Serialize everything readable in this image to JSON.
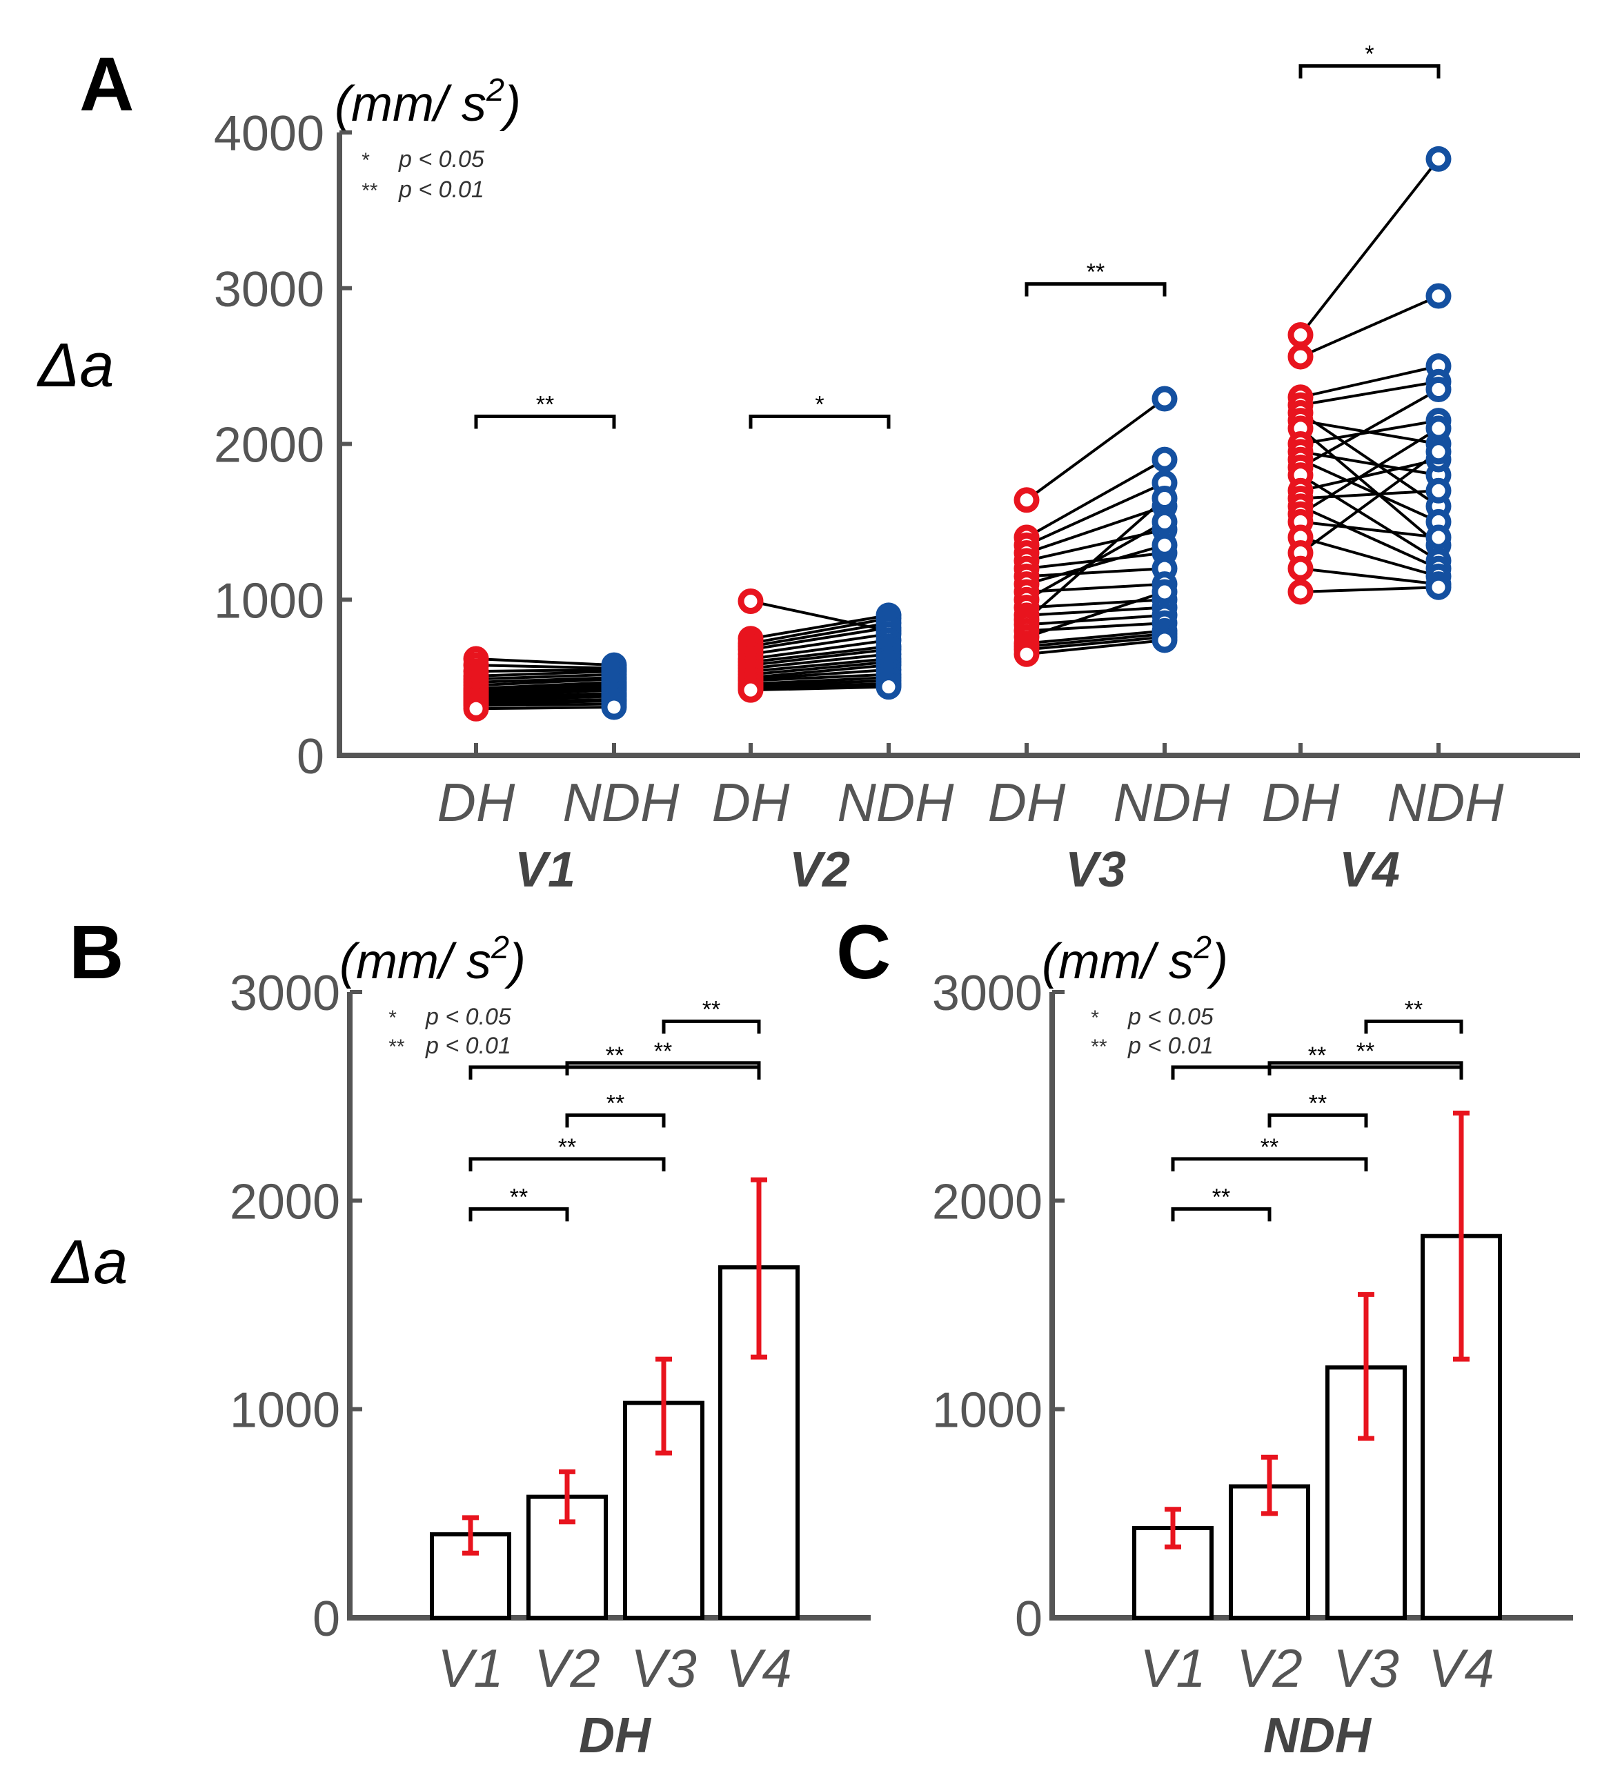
{
  "colors": {
    "dh": "#e8141e",
    "ndh": "#1450a0",
    "axis": "#555555",
    "error": "#e8141e"
  },
  "chart_data": [
    {
      "panel": "A",
      "type": "scatter",
      "unit_label": "(mm/ s2)",
      "ylabel": "Δa",
      "ylim": [
        0,
        4000
      ],
      "yticks": [
        "0",
        "1000",
        "2000",
        "3000",
        "4000"
      ],
      "categories": [
        "DH",
        "NDH",
        "DH",
        "NDH",
        "DH",
        "NDH",
        "DH",
        "NDH"
      ],
      "groups": [
        "V1",
        "V2",
        "V3",
        "V4"
      ],
      "legend": [
        {
          "sym": "*",
          "text": "p < 0.05"
        },
        {
          "sym": "**",
          "text": "p < 0.01"
        }
      ],
      "paired": [
        {
          "group": "V1",
          "sig": "**",
          "bracket_y": 2000,
          "DH": [
            620,
            580,
            540,
            510,
            490,
            470,
            450,
            430,
            420,
            410,
            400,
            390,
            380,
            370,
            360,
            350,
            340,
            330,
            320,
            300
          ],
          "NDH": [
            580,
            560,
            550,
            540,
            520,
            500,
            490,
            470,
            460,
            450,
            440,
            430,
            420,
            400,
            390,
            380,
            360,
            350,
            330,
            310
          ]
        },
        {
          "group": "V2",
          "sig": "*",
          "bracket_y": 2000,
          "DH": [
            990,
            750,
            720,
            700,
            680,
            650,
            620,
            600,
            580,
            560,
            540,
            520,
            500,
            490,
            480,
            460,
            450,
            440,
            430,
            420
          ],
          "NDH": [
            800,
            900,
            880,
            850,
            820,
            780,
            740,
            700,
            680,
            650,
            620,
            600,
            580,
            550,
            520,
            500,
            480,
            460,
            450,
            440
          ]
        },
        {
          "group": "V3",
          "sig": "**",
          "bracket_y": 2850,
          "DH": [
            1640,
            1400,
            1350,
            1300,
            1250,
            1200,
            1150,
            1100,
            1050,
            1000,
            950,
            900,
            870,
            840,
            800,
            760,
            720,
            700,
            680,
            650
          ],
          "NDH": [
            2290,
            1900,
            1750,
            1600,
            1450,
            1300,
            1200,
            1350,
            1100,
            1500,
            1000,
            950,
            1650,
            900,
            850,
            1050,
            800,
            780,
            760,
            740
          ]
        },
        {
          "group": "V4",
          "sig": "*",
          "bracket_y": 4250,
          "DH": [
            2700,
            2560,
            2300,
            2250,
            2200,
            2150,
            2100,
            2000,
            1950,
            1900,
            1850,
            1800,
            1700,
            1650,
            1600,
            1550,
            1500,
            1400,
            1300,
            1200,
            1050
          ],
          "NDH": [
            3830,
            2950,
            2500,
            2400,
            1600,
            2000,
            1350,
            2150,
            1800,
            1500,
            2350,
            1250,
            1900,
            1700,
            1200,
            2100,
            1400,
            1150,
            1950,
            1100,
            1080
          ]
        }
      ]
    },
    {
      "panel": "B",
      "type": "bar",
      "unit_label": "(mm/ s2)",
      "ylabel": "Δa",
      "xlabel": "DH",
      "ylim": [
        0,
        3000
      ],
      "yticks": [
        "0",
        "1000",
        "2000",
        "3000"
      ],
      "categories": [
        "V1",
        "V2",
        "V3",
        "V4"
      ],
      "values": [
        400,
        580,
        1030,
        1680
      ],
      "errors": [
        [
          310,
          480
        ],
        [
          460,
          700
        ],
        [
          790,
          1240
        ],
        [
          1250,
          2100
        ]
      ],
      "legend": [
        {
          "sym": "*",
          "text": "p < 0.05"
        },
        {
          "sym": "**",
          "text": "p < 0.01"
        }
      ],
      "brackets": [
        {
          "from": 2,
          "to": 3,
          "y": 2860,
          "sig": "**"
        },
        {
          "from": 1,
          "to": 3,
          "y": 2660,
          "sig": "**"
        },
        {
          "from": 0,
          "to": 3,
          "y": 2640,
          "sig": "**"
        },
        {
          "from": 1,
          "to": 2,
          "y": 2410,
          "sig": "**"
        },
        {
          "from": 0,
          "to": 2,
          "y": 2200,
          "sig": "**"
        },
        {
          "from": 0,
          "to": 1,
          "y": 1960,
          "sig": "**"
        }
      ]
    },
    {
      "panel": "C",
      "type": "bar",
      "unit_label": "(mm/ s2)",
      "xlabel": "NDH",
      "ylim": [
        0,
        3000
      ],
      "yticks": [
        "0",
        "1000",
        "2000",
        "3000"
      ],
      "categories": [
        "V1",
        "V2",
        "V3",
        "V4"
      ],
      "values": [
        430,
        630,
        1200,
        1830
      ],
      "errors": [
        [
          340,
          520
        ],
        [
          500,
          770
        ],
        [
          860,
          1550
        ],
        [
          1240,
          2420
        ]
      ],
      "legend": [
        {
          "sym": "*",
          "text": "p < 0.05"
        },
        {
          "sym": "**",
          "text": "p < 0.01"
        }
      ],
      "brackets": [
        {
          "from": 2,
          "to": 3,
          "y": 2860,
          "sig": "**"
        },
        {
          "from": 1,
          "to": 3,
          "y": 2660,
          "sig": "**"
        },
        {
          "from": 0,
          "to": 3,
          "y": 2640,
          "sig": "**"
        },
        {
          "from": 1,
          "to": 2,
          "y": 2410,
          "sig": "**"
        },
        {
          "from": 0,
          "to": 2,
          "y": 2200,
          "sig": "**"
        },
        {
          "from": 0,
          "to": 1,
          "y": 1960,
          "sig": "**"
        }
      ]
    }
  ]
}
